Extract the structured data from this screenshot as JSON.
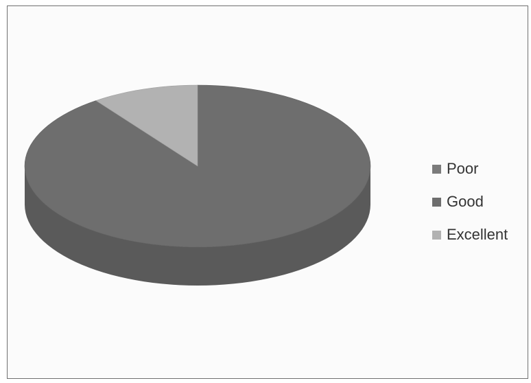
{
  "chart_data": {
    "type": "pie",
    "style": "3d",
    "title": "",
    "categories": [
      "Poor",
      "Good",
      "Excellent"
    ],
    "values": [
      0,
      90,
      10
    ],
    "colors": [
      "#7b7b7b",
      "#6e6e6e",
      "#b2b2b2"
    ],
    "legend_position": "right"
  },
  "legend": {
    "items": [
      {
        "label": "Poor",
        "color": "#7b7b7b"
      },
      {
        "label": "Good",
        "color": "#6e6e6e"
      },
      {
        "label": "Excellent",
        "color": "#b2b2b2"
      }
    ]
  }
}
